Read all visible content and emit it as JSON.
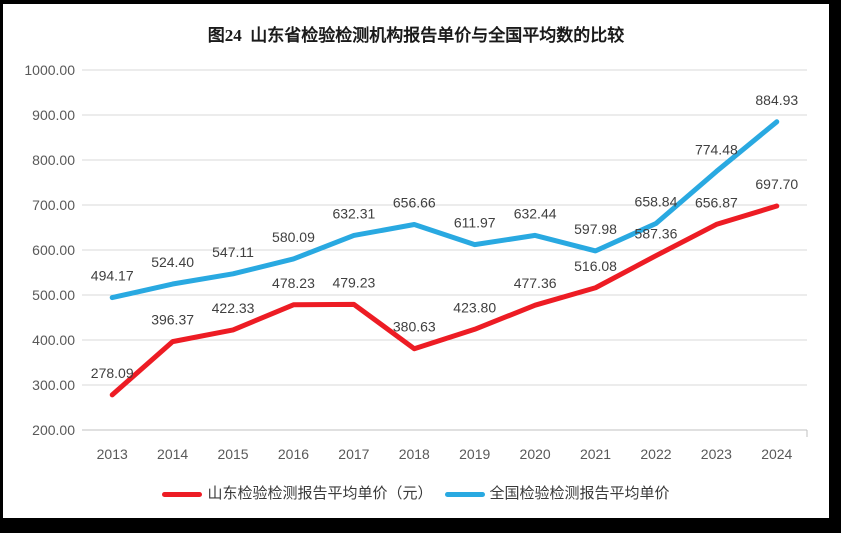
{
  "title": "图24  山东省检验检测机构报告单价与全国平均数的比较",
  "chart_data": {
    "type": "line",
    "title": "图24  山东省检验检测机构报告单价与全国平均数的比较",
    "categories": [
      "2013",
      "2014",
      "2015",
      "2016",
      "2017",
      "2018",
      "2019",
      "2020",
      "2021",
      "2022",
      "2023",
      "2024"
    ],
    "series": [
      {
        "name": "山东检验检测报告平均单价（元）",
        "color": "#ed1c24",
        "values": [
          278.09,
          396.37,
          422.33,
          478.23,
          479.23,
          380.63,
          423.8,
          477.36,
          516.08,
          587.36,
          656.87,
          697.7
        ]
      },
      {
        "name": "全国检验检测报告平均单价",
        "color": "#29a9e1",
        "values": [
          494.17,
          524.4,
          547.11,
          580.09,
          632.31,
          656.66,
          611.97,
          632.44,
          597.98,
          658.84,
          774.48,
          884.93
        ]
      }
    ],
    "xlabel": "",
    "ylabel": "",
    "ylim": [
      200,
      1000
    ],
    "ytick_step": 100,
    "ytick_labels": [
      "200.00",
      "300.00",
      "400.00",
      "500.00",
      "600.00",
      "700.00",
      "800.00",
      "900.00",
      "1000.00"
    ],
    "data_labels": true,
    "grid": true,
    "legend_position": "bottom",
    "colors": {
      "grid": "#d9d9d9",
      "axis": "#c0c0c0",
      "tick_text": "#595959",
      "data_label_text": "#404040",
      "frame": "#000000",
      "background": "#ffffff"
    }
  }
}
